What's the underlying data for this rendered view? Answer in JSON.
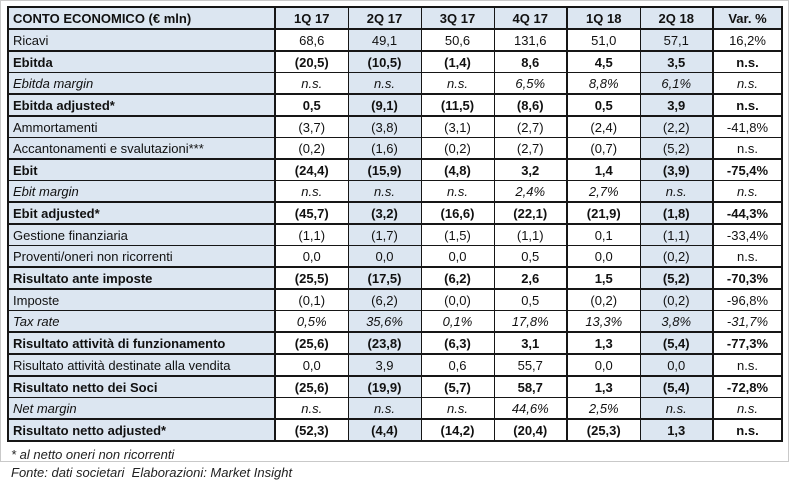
{
  "chart_data": {
    "type": "table",
    "title": "CONTO ECONOMICO (€ mln)",
    "columns": [
      "1Q 17",
      "2Q 17",
      "3Q 17",
      "4Q 17",
      "1Q 18",
      "2Q 18",
      "Var. %"
    ],
    "highlight_columns": [
      "2Q 17",
      "2Q 18"
    ],
    "rows": [
      {
        "label": "Ricavi",
        "style": "normal",
        "values": [
          "68,6",
          "49,1",
          "50,6",
          "131,6",
          "51,0",
          "57,1",
          "16,2%"
        ]
      },
      {
        "label": "Ebitda",
        "style": "bold",
        "values": [
          "(20,5)",
          "(10,5)",
          "(1,4)",
          "8,6",
          "4,5",
          "3,5",
          "n.s."
        ]
      },
      {
        "label": "Ebitda margin",
        "style": "italic",
        "values": [
          "n.s.",
          "n.s.",
          "n.s.",
          "6,5%",
          "8,8%",
          "6,1%",
          "n.s."
        ]
      },
      {
        "label": "Ebitda adjusted*",
        "style": "bold",
        "values": [
          "0,5",
          "(9,1)",
          "(11,5)",
          "(8,6)",
          "0,5",
          "3,9",
          "n.s."
        ]
      },
      {
        "label": "Ammortamenti",
        "style": "normal",
        "values": [
          "(3,7)",
          "(3,8)",
          "(3,1)",
          "(2,7)",
          "(2,4)",
          "(2,2)",
          "-41,8%"
        ]
      },
      {
        "label": "Accantonamenti e svalutazioni***",
        "style": "normal",
        "values": [
          "(0,2)",
          "(1,6)",
          "(0,2)",
          "(2,7)",
          "(0,7)",
          "(5,2)",
          "n.s."
        ]
      },
      {
        "label": "Ebit",
        "style": "bold",
        "values": [
          "(24,4)",
          "(15,9)",
          "(4,8)",
          "3,2",
          "1,4",
          "(3,9)",
          "-75,4%"
        ]
      },
      {
        "label": "Ebit margin",
        "style": "italic",
        "values": [
          "n.s.",
          "n.s.",
          "n.s.",
          "2,4%",
          "2,7%",
          "n.s.",
          "n.s."
        ]
      },
      {
        "label": "Ebit adjusted*",
        "style": "bold",
        "values": [
          "(45,7)",
          "(3,2)",
          "(16,6)",
          "(22,1)",
          "(21,9)",
          "(1,8)",
          "-44,3%"
        ]
      },
      {
        "label": "Gestione finanziaria",
        "style": "normal",
        "values": [
          "(1,1)",
          "(1,7)",
          "(1,5)",
          "(1,1)",
          "0,1",
          "(1,1)",
          "-33,4%"
        ]
      },
      {
        "label": "Proventi/oneri non ricorrenti",
        "style": "normal",
        "values": [
          "0,0",
          "0,0",
          "0,0",
          "0,5",
          "0,0",
          "(0,2)",
          "n.s."
        ]
      },
      {
        "label": "Risultato ante imposte",
        "style": "bold",
        "values": [
          "(25,5)",
          "(17,5)",
          "(6,2)",
          "2,6",
          "1,5",
          "(5,2)",
          "-70,3%"
        ]
      },
      {
        "label": "Imposte",
        "style": "normal",
        "values": [
          "(0,1)",
          "(6,2)",
          "(0,0)",
          "0,5",
          "(0,2)",
          "(0,2)",
          "-96,8%"
        ]
      },
      {
        "label": "Tax rate",
        "style": "italic",
        "values": [
          "0,5%",
          "35,6%",
          "0,1%",
          "17,8%",
          "13,3%",
          "3,8%",
          "-31,7%"
        ]
      },
      {
        "label": "Risultato attività di funzionamento",
        "style": "bold",
        "values": [
          "(25,6)",
          "(23,8)",
          "(6,3)",
          "3,1",
          "1,3",
          "(5,4)",
          "-77,3%"
        ]
      },
      {
        "label": "Risultato attività destinate alla vendita",
        "style": "normal",
        "values": [
          "0,0",
          "3,9",
          "0,6",
          "55,7",
          "0,0",
          "0,0",
          "n.s."
        ]
      },
      {
        "label": "Risultato netto dei Soci",
        "style": "bold",
        "values": [
          "(25,6)",
          "(19,9)",
          "(5,7)",
          "58,7",
          "1,3",
          "(5,4)",
          "-72,8%"
        ]
      },
      {
        "label": "Net margin",
        "style": "italic",
        "values": [
          "n.s.",
          "n.s.",
          "n.s.",
          "44,6%",
          "2,5%",
          "n.s.",
          "n.s."
        ]
      },
      {
        "label": "Risultato netto adjusted*",
        "style": "bold",
        "values": [
          "(52,3)",
          "(4,4)",
          "(14,2)",
          "(20,4)",
          "(25,3)",
          "1,3",
          "n.s."
        ]
      }
    ]
  },
  "footnotes": {
    "note": "* al netto oneri non ricorrenti",
    "source": "Fonte: dati societari  Elaborazioni: Market Insight"
  },
  "colors": {
    "shade": "#dce6f1",
    "border": "#161616",
    "text": "#111111"
  }
}
